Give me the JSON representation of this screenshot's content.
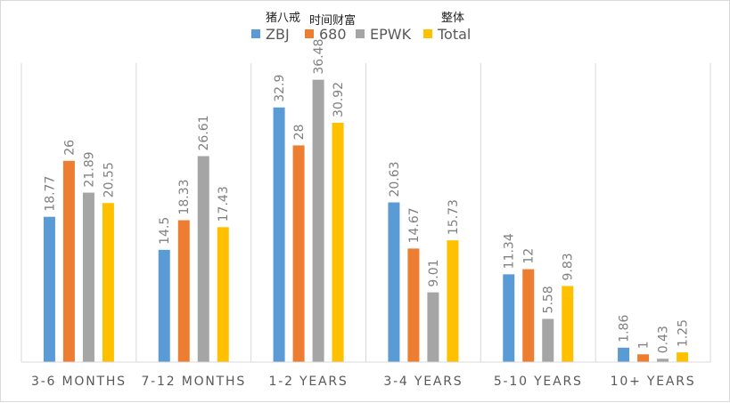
{
  "chart_data": {
    "type": "bar",
    "categories": [
      "3-6 MONTHS",
      "7-12 MONTHS",
      "1-2 YEARS",
      "3-4 YEARS",
      "5-10 YEARS",
      "10+ YEARS"
    ],
    "series": [
      {
        "name": "ZBJ",
        "name_cn": "猪八戒",
        "color": "#5b9bd5",
        "values": [
          18.77,
          14.5,
          32.9,
          20.63,
          11.34,
          1.86
        ]
      },
      {
        "name": "680",
        "name_cn": "时间财富",
        "color": "#ed7d31",
        "values": [
          26,
          18.33,
          28,
          14.67,
          12,
          1
        ]
      },
      {
        "name": "EPWK",
        "name_cn": "",
        "color": "#a5a5a5",
        "values": [
          21.89,
          26.61,
          36.48,
          9.01,
          5.58,
          0.43
        ]
      },
      {
        "name": "Total",
        "name_cn": "整体",
        "color": "#ffc000",
        "values": [
          20.55,
          17.43,
          30.92,
          15.73,
          9.83,
          1.25
        ]
      }
    ],
    "ylim": [
      0,
      40
    ],
    "grid": false,
    "legend_position": "top",
    "category_separators": true,
    "title": "",
    "xlabel": "",
    "ylabel": ""
  }
}
